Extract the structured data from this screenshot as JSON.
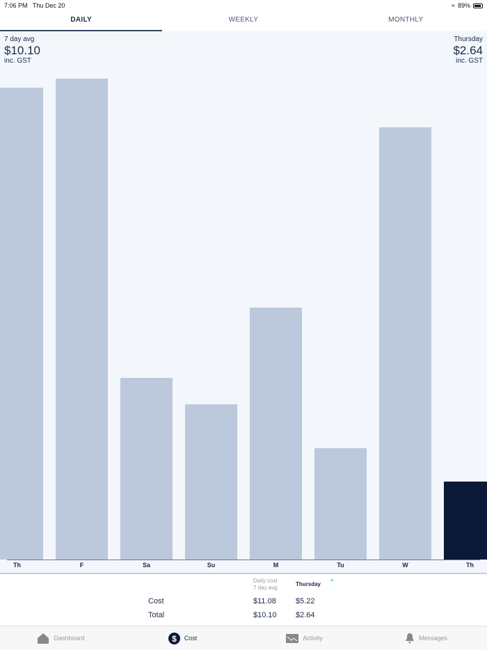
{
  "status_bar": {
    "time": "7:06 PM",
    "date": "Thu Dec 20",
    "battery": "89%"
  },
  "tabs": [
    {
      "label": "DAILY",
      "active": true
    },
    {
      "label": "WEEKLY"
    },
    {
      "label": "MONTHLY"
    }
  ],
  "chart_header": {
    "left_label": "7 day avg",
    "left_value": "$10.10",
    "left_note": "inc. GST",
    "right_label": "Thursday",
    "right_value": "$2.64",
    "right_note": "inc. GST"
  },
  "chart_data": {
    "type": "bar",
    "categories": [
      "Th",
      "F",
      "Sa",
      "Su",
      "M",
      "Tu",
      "W",
      "Th"
    ],
    "values": [
      16.0,
      16.3,
      6.15,
      5.26,
      8.53,
      3.77,
      14.64,
      2.64
    ],
    "selected_index": 7,
    "ylim": [
      0,
      17.9
    ],
    "grid": false,
    "colors": {
      "bar": "#bcc8dc",
      "selected": "#0b1a38"
    }
  },
  "summary": {
    "col1_header_line1": "Daily cost",
    "col1_header_line2": "7 day avg",
    "col2_header": "Thursday",
    "rows": [
      {
        "label": "Cost",
        "avg": "$11.08",
        "day": "$5.22"
      },
      {
        "label": "Total",
        "avg": "$10.10",
        "day": "$2.64"
      }
    ]
  },
  "nav": [
    {
      "label": "Dashboard",
      "icon": "home-icon"
    },
    {
      "label": "Cost",
      "icon": "dollar-icon",
      "active": true
    },
    {
      "label": "Activity",
      "icon": "activity-icon"
    },
    {
      "label": "Messages",
      "icon": "bell-icon"
    }
  ]
}
